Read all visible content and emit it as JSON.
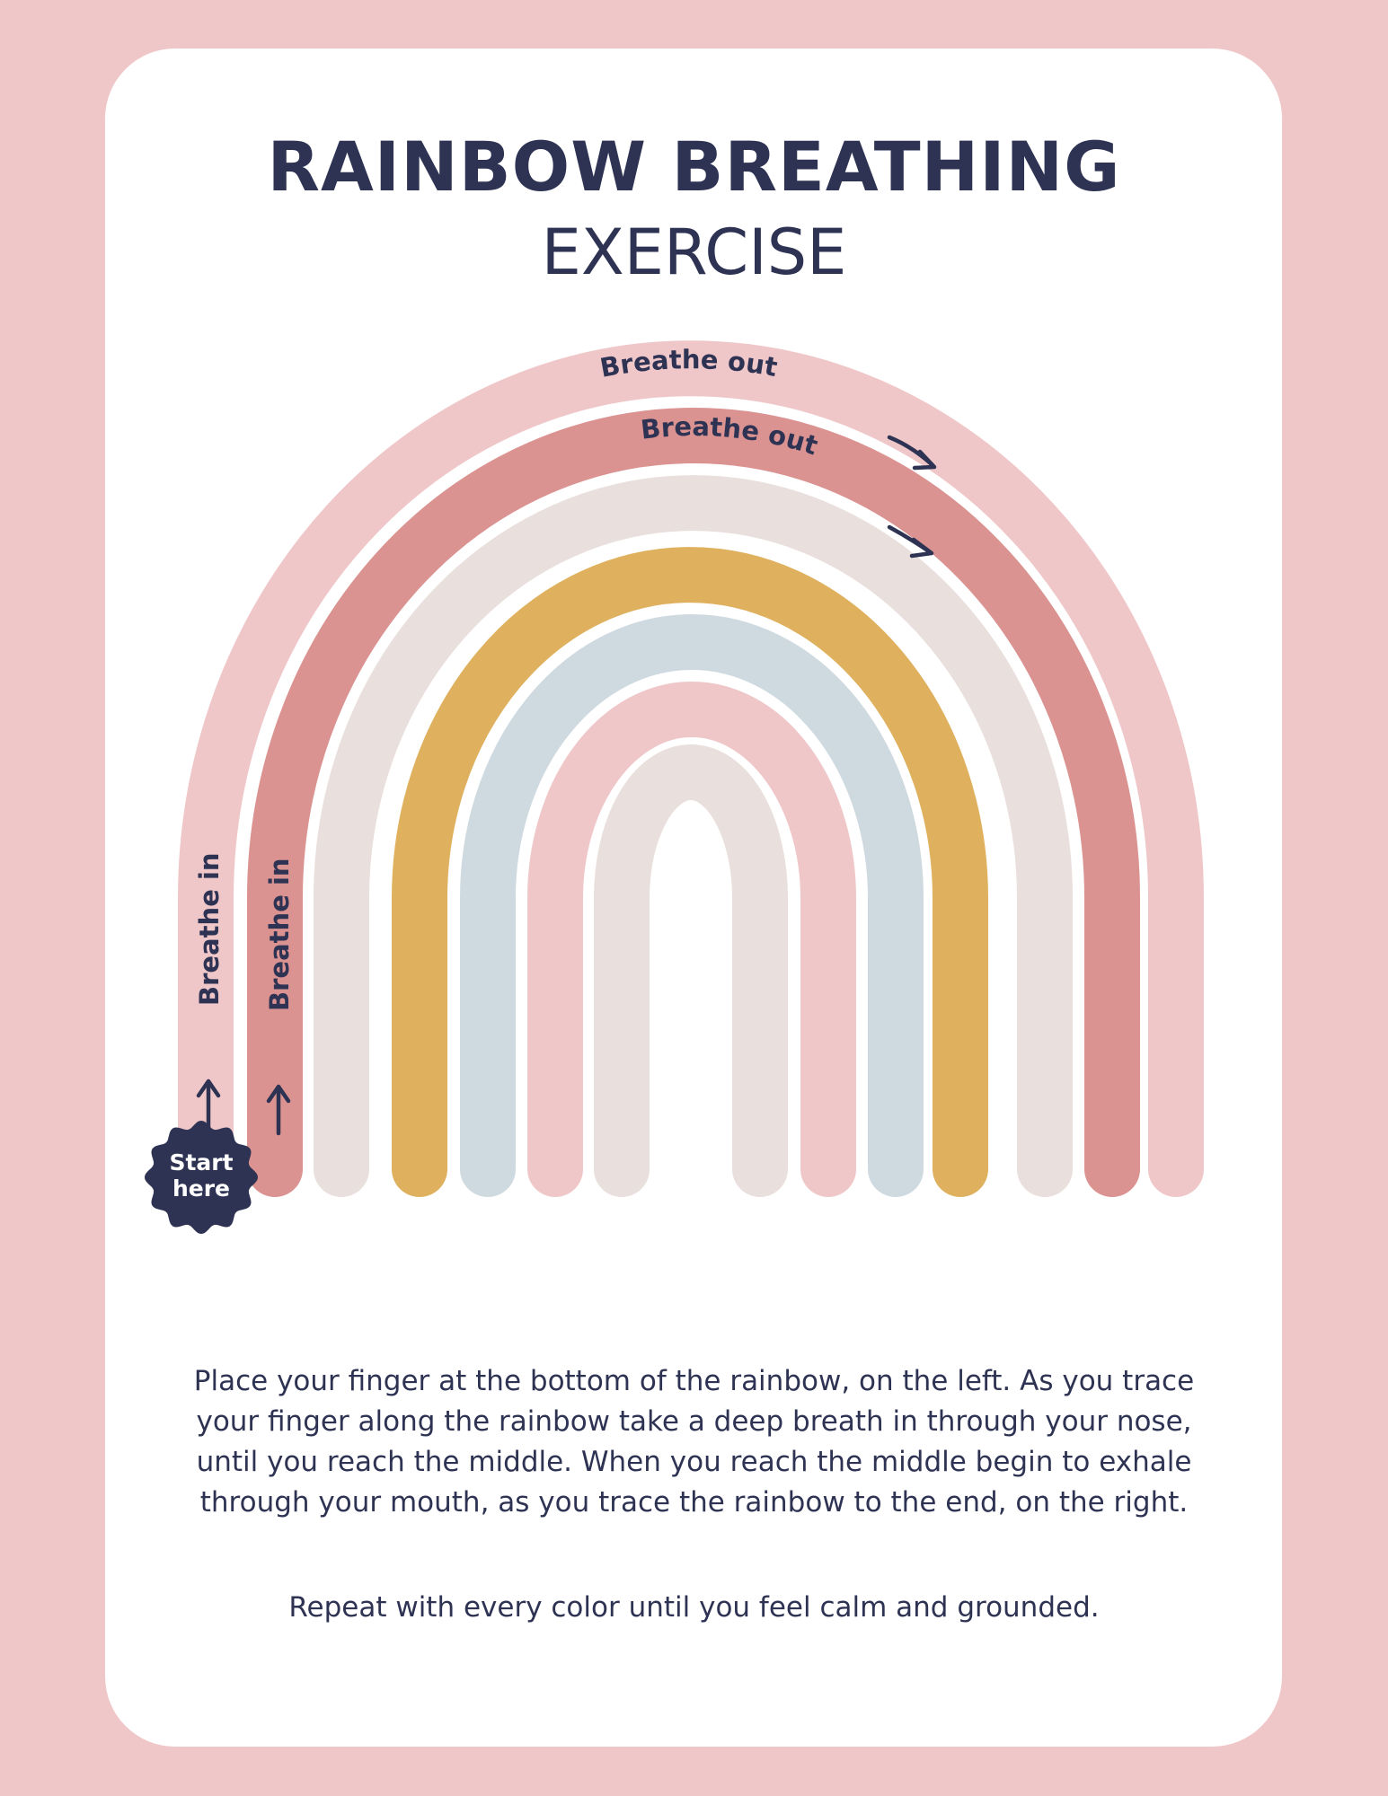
{
  "page": {
    "title": "RAINBOW BREATHING",
    "subtitle": "EXERCISE"
  },
  "rainbow": {
    "bands": [
      {
        "color": "#f0c7c9"
      },
      {
        "color": "#db9391"
      },
      {
        "color": "#e9dfdd"
      },
      {
        "color": "#dfb15f"
      },
      {
        "color": "#cfdae0"
      },
      {
        "color": "#f0c7c9"
      },
      {
        "color": "#e9dfdd"
      }
    ],
    "labels": {
      "breathe_out_outer": "Breathe out",
      "breathe_out_inner": "Breathe out",
      "breathe_in_outer": "Breathe in",
      "breathe_in_inner": "Breathe in"
    },
    "start_badge": {
      "line1": "Start",
      "line2": "here"
    },
    "icons": [
      "arrow-up-icon",
      "arrow-right-icon",
      "start-badge"
    ]
  },
  "instructions": {
    "paragraph": "Place your finger at the bottom of the rainbow, on the left. As you trace your finger along the rainbow take a deep breath in through your nose, until you reach the middle. When you reach the middle begin to exhale through your mouth, as you trace the rainbow to the end, on the right.",
    "repeat": "Repeat with every color until you feel calm and grounded."
  },
  "colors": {
    "background": "#f0c7c9",
    "card": "#ffffff",
    "text": "#2e3353"
  }
}
